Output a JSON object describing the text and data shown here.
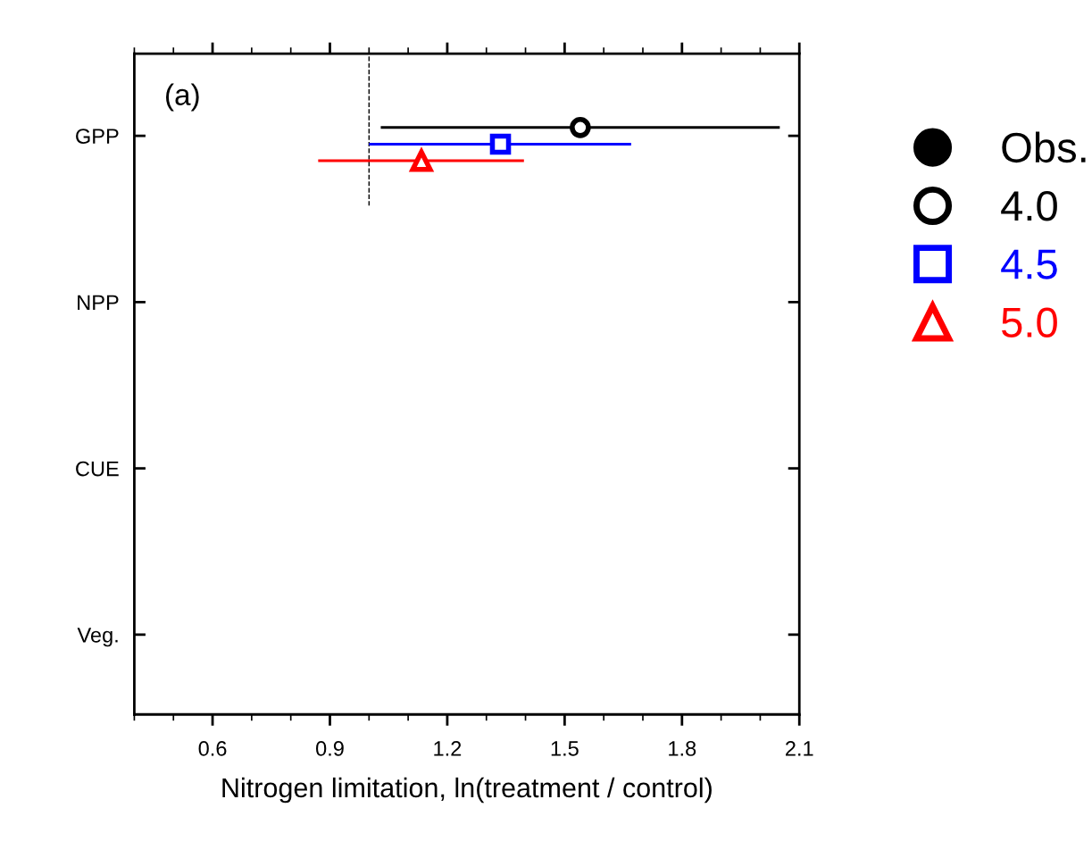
{
  "chart_data": {
    "type": "scatter",
    "orientation": "horizontal",
    "categories": [
      "GPP",
      "NPP",
      "CUE",
      "Veg."
    ],
    "xlabel": "Nitrogen limitation, ln(treatment / control)",
    "xlim": [
      0.4,
      2.1
    ],
    "xticks": [
      {
        "value": 0.4,
        "label": null
      },
      {
        "value": 0.5,
        "label": null
      },
      0.6,
      {
        "value": 0.7,
        "label": null
      },
      {
        "value": 0.8,
        "label": null
      },
      0.9,
      {
        "value": 1.0,
        "label": null
      },
      {
        "value": 1.1,
        "label": null
      },
      1.2,
      {
        "value": 1.3,
        "label": null
      },
      {
        "value": 1.4,
        "label": null
      },
      1.5,
      {
        "value": 1.6,
        "label": null
      },
      {
        "value": 1.7,
        "label": null
      },
      1.8,
      {
        "value": 1.9,
        "label": null
      },
      {
        "value": 2.0,
        "label": null
      },
      2.1
    ],
    "annotations": [
      "(a)"
    ],
    "ref_lines": [
      {
        "axis": "x",
        "value": 1.0,
        "color": "#000000",
        "line_style": "dashed"
      }
    ],
    "legend": "right",
    "grid": false,
    "series": [
      {
        "name": "Obs.",
        "color": "#000000",
        "marker": "circle",
        "values": [
          null,
          null,
          null,
          null
        ]
      },
      {
        "name": "4.0",
        "color": "#000000",
        "marker": "circle",
        "values": [
          1.54,
          null,
          null,
          null
        ],
        "errors": [
          [
            1.03,
            2.05
          ],
          null,
          null,
          null
        ]
      },
      {
        "name": "4.5",
        "color": "#0000ff",
        "marker": "square",
        "values": [
          1.336,
          null,
          null,
          null
        ],
        "errors": [
          [
            1.0,
            1.67
          ],
          null,
          null,
          null
        ]
      },
      {
        "name": "5.0",
        "color": "#ff0000",
        "marker": "triangle",
        "values": [
          1.134,
          null,
          null,
          null
        ],
        "errors": [
          [
            0.87,
            1.396
          ],
          null,
          null,
          null
        ]
      }
    ]
  }
}
